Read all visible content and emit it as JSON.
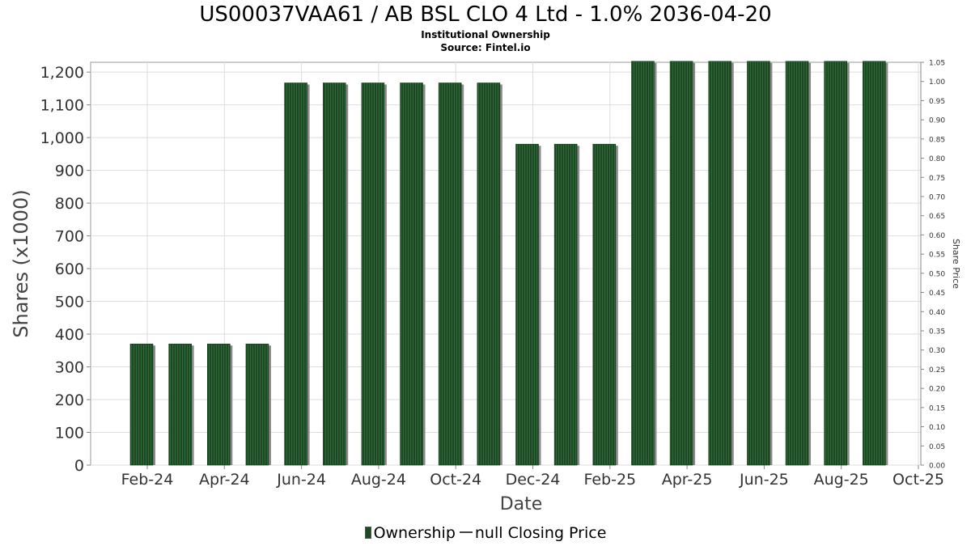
{
  "header": {
    "title": "US00037VAA61 / AB BSL CLO 4 Ltd - 1.0% 2036-04-20",
    "subtitle": "Institutional Ownership",
    "source": "Source: Fintel.io"
  },
  "legend": {
    "ownership_label": "Ownership",
    "price_label": "null Closing Price"
  },
  "colors": {
    "bar_fill": "#1d4a25",
    "bar_stripe": "#2f6a38",
    "bar_shadow": "#8a8a8a",
    "grid": "#dddddd",
    "axis": "#888888"
  },
  "chart_data": {
    "type": "bar",
    "xlabel": "Date",
    "ylabel": "Shares (x1000)",
    "y2label": "Share Price",
    "ylim": [
      0,
      1230
    ],
    "y2lim": [
      0,
      1.05
    ],
    "grid": true,
    "legend_position": "bottom-center",
    "x_tick_labels": [
      "Feb-24",
      "Apr-24",
      "Jun-24",
      "Aug-24",
      "Oct-24",
      "Dec-24",
      "Feb-25",
      "Apr-25",
      "Jun-25",
      "Aug-25",
      "Oct-25"
    ],
    "y_ticks": [
      0,
      100,
      200,
      300,
      400,
      500,
      600,
      700,
      800,
      900,
      1000,
      1100,
      1200
    ],
    "y_tick_labels": [
      "0",
      "100",
      "200",
      "300",
      "400",
      "500",
      "600",
      "700",
      "800",
      "900",
      "1,000",
      "1,100",
      "1,200"
    ],
    "y2_ticks": [
      0.0,
      0.05,
      0.1,
      0.15,
      0.2,
      0.25,
      0.3,
      0.35,
      0.4,
      0.45,
      0.5,
      0.55,
      0.6,
      0.65,
      0.7,
      0.75,
      0.8,
      0.85,
      0.9,
      0.95,
      1.0,
      1.05
    ],
    "y2_tick_labels": [
      "0.00",
      "0.05",
      "0.10",
      "0.15",
      "0.20",
      "0.25",
      "0.30",
      "0.35",
      "0.40",
      "0.45",
      "0.50",
      "0.55",
      "0.60",
      "0.65",
      "0.70",
      "0.75",
      "0.80",
      "0.85",
      "0.90",
      "0.95",
      "1.00",
      "1.05"
    ],
    "series": [
      {
        "name": "Ownership",
        "values": [
          370,
          370,
          370,
          370,
          1167,
          1167,
          1167,
          1167,
          1167,
          1167,
          980,
          980,
          980,
          1233,
          1233,
          1233,
          1233,
          1233,
          1233,
          1233
        ]
      }
    ]
  }
}
